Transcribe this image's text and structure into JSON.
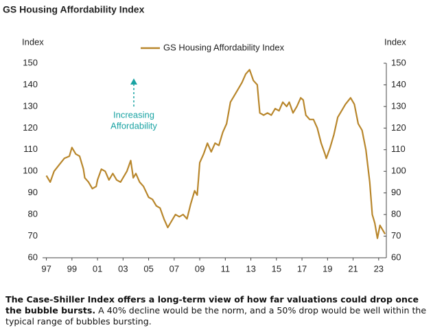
{
  "chart_data": {
    "type": "line",
    "title": "GS Housing Affordability Index",
    "y_label": "Index",
    "y2_label": "Index",
    "annotation": [
      "Increasing",
      "Affordability"
    ],
    "annotation_color": "#1aa3a3",
    "legend": "top-center",
    "xlim": [
      1996.7,
      2023.6
    ],
    "xticks": [
      {
        "value": 1997,
        "label": "97"
      },
      {
        "value": 1999,
        "label": "99"
      },
      {
        "value": 2001,
        "label": "01"
      },
      {
        "value": 2003,
        "label": "03"
      },
      {
        "value": 2005,
        "label": "05"
      },
      {
        "value": 2007,
        "label": "07"
      },
      {
        "value": 2009,
        "label": "09"
      },
      {
        "value": 2011,
        "label": "11"
      },
      {
        "value": 2013,
        "label": "13"
      },
      {
        "value": 2015,
        "label": "15"
      },
      {
        "value": 2017,
        "label": "17"
      },
      {
        "value": 2019,
        "label": "19"
      },
      {
        "value": 2021,
        "label": "21"
      },
      {
        "value": 2023,
        "label": "23"
      }
    ],
    "ylim": [
      60,
      150
    ],
    "yticks": [
      60,
      70,
      80,
      90,
      100,
      110,
      120,
      130,
      140,
      150
    ],
    "y2lim": [
      60,
      150
    ],
    "y2ticks": [
      60,
      70,
      80,
      90,
      100,
      110,
      120,
      130,
      140,
      150
    ],
    "x": [
      1997.0,
      1997.3,
      1997.6,
      1998.0,
      1998.4,
      1998.8,
      1999.0,
      1999.3,
      1999.6,
      1999.9,
      2000.0,
      2000.3,
      2000.6,
      2000.9,
      2001.0,
      2001.3,
      2001.6,
      2001.9,
      2002.2,
      2002.5,
      2002.8,
      2003.0,
      2003.3,
      2003.6,
      2003.8,
      2004.0,
      2004.3,
      2004.6,
      2005.0,
      2005.3,
      2005.6,
      2005.9,
      2006.2,
      2006.5,
      2006.8,
      2007.1,
      2007.4,
      2007.7,
      2008.0,
      2008.3,
      2008.6,
      2008.8,
      2009.0,
      2009.3,
      2009.6,
      2009.9,
      2010.2,
      2010.5,
      2010.8,
      2011.1,
      2011.4,
      2011.7,
      2012.0,
      2012.3,
      2012.6,
      2012.9,
      2013.2,
      2013.5,
      2013.7,
      2014.0,
      2014.3,
      2014.6,
      2014.9,
      2015.2,
      2015.5,
      2015.8,
      2016.0,
      2016.3,
      2016.6,
      2016.9,
      2017.1,
      2017.3,
      2017.6,
      2017.9,
      2018.2,
      2018.5,
      2018.8,
      2018.9,
      2019.2,
      2019.5,
      2019.8,
      2020.1,
      2020.4,
      2020.8,
      2021.1,
      2021.4,
      2021.7,
      2022.0,
      2022.3,
      2022.5,
      2022.7,
      2022.9,
      2023.1,
      2023.3,
      2023.5
    ],
    "series": [
      {
        "name": "GS Housing Affordability Index",
        "color": "#b8862b",
        "values": [
          98,
          95,
          100,
          103,
          106,
          107,
          111,
          108,
          107,
          101,
          97,
          95,
          92,
          93,
          96,
          101,
          100,
          96,
          99,
          96,
          95,
          97,
          100,
          105,
          97,
          99,
          95,
          93,
          88,
          87,
          84,
          83,
          78,
          74,
          77,
          80,
          79,
          80,
          78,
          85,
          91,
          89,
          104,
          108,
          113,
          109,
          113,
          112,
          118,
          122,
          132,
          135,
          138,
          141,
          145,
          147,
          142,
          140,
          127,
          126,
          127,
          126,
          129,
          128,
          132,
          130,
          132,
          127,
          130,
          134,
          133,
          126,
          124,
          124,
          120,
          113,
          108,
          106,
          111,
          117,
          125,
          128,
          131,
          134,
          131,
          122,
          119,
          110,
          95,
          80,
          76,
          69,
          75,
          73,
          71
        ]
      }
    ]
  },
  "caption": {
    "bold": "The Case-Shiller Index offers a long-term view of how far valuations could drop once the bubble bursts.",
    "text": "A 40% decline would be the norm, and a 50% drop would be well within the typical range of bubbles bursting."
  }
}
